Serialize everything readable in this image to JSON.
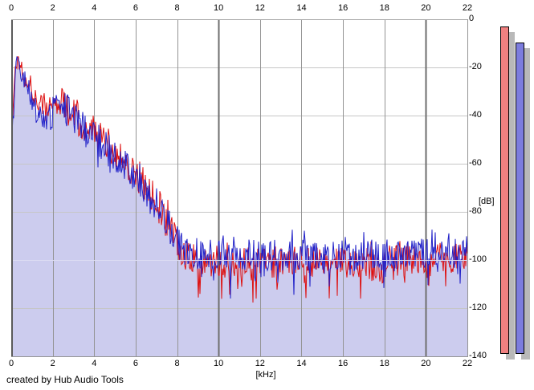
{
  "footer": {
    "credit": "created by Hub Audio Tools"
  },
  "axes": {
    "x_unit_label": "[kHz]",
    "y_unit_label": "[dB]",
    "x_ticks": [
      "0",
      "2",
      "4",
      "6",
      "8",
      "10",
      "12",
      "14",
      "16",
      "18",
      "20",
      "22"
    ],
    "y_ticks": [
      {
        "label": "0",
        "db": 0
      },
      {
        "label": "-20",
        "db": -20
      },
      {
        "label": "-40",
        "db": -40
      },
      {
        "label": "-60",
        "db": -60
      },
      {
        "label": "-80",
        "db": -80
      },
      {
        "label": "-100",
        "db": -100
      },
      {
        "label": "-120",
        "db": -120
      },
      {
        "label": "-140",
        "db": -140
      }
    ]
  },
  "colors": {
    "background": "#ffffff",
    "fill_area": "#ccccee",
    "trace_red": "#dd1010",
    "trace_blue": "#2121c8",
    "grid_horizontal": "#c6c6c6",
    "grid_vertical": "#949494",
    "grid_vertical_major": "#6e6e6e",
    "overlay_line": "#dcdcf2",
    "border_dark": "#5a5a5a",
    "border_light": "#a8a8a8",
    "meter_red": "#f08080",
    "meter_blue": "#7d7dde",
    "meter_shadow": "#b9b9b9"
  },
  "chart_data": {
    "type": "line",
    "title": "",
    "xlabel": "[kHz]",
    "ylabel": "[dB]",
    "xlim": [
      0,
      22
    ],
    "ylim": [
      -140,
      0
    ],
    "x_tick_step_khz": 2,
    "y_tick_step_db": 20,
    "grid": true,
    "legend": "none",
    "description": "Dual-channel audio FFT spectrum; noisy traces peak near -16 dB at 0.3 kHz, decay to a ~-100 dB noise floor above 8 kHz; lavender area fill under blue trace; pale marker line at -100 dB",
    "overlay_line_db": -100,
    "noise_halfband_db": [
      [
        0,
        5
      ],
      [
        0.3,
        5
      ],
      [
        1,
        6
      ],
      [
        2.5,
        7
      ],
      [
        7.5,
        7
      ],
      [
        8.5,
        6.5
      ],
      [
        22,
        6.5
      ]
    ],
    "series": [
      {
        "name": "channel-1-spectrum",
        "color": "#dd1010",
        "seed": 1337,
        "spikes": {
          "down_prob": 0.15,
          "down_extra_db": 11,
          "up_prob": 0.05,
          "up_extra_db": 4,
          "above_khz": 8.4
        },
        "envelope_db": [
          [
            0,
            -58
          ],
          [
            0.08,
            -38
          ],
          [
            0.18,
            -22
          ],
          [
            0.3,
            -16
          ],
          [
            0.45,
            -19
          ],
          [
            0.6,
            -22
          ],
          [
            0.8,
            -25
          ],
          [
            1.0,
            -29
          ],
          [
            1.2,
            -33
          ],
          [
            1.5,
            -37
          ],
          [
            1.8,
            -36
          ],
          [
            2.1,
            -35
          ],
          [
            2.4,
            -34
          ],
          [
            2.7,
            -35
          ],
          [
            3.0,
            -38
          ],
          [
            3.3,
            -42
          ],
          [
            3.6,
            -45
          ],
          [
            4.0,
            -47
          ],
          [
            4.4,
            -50
          ],
          [
            4.8,
            -53
          ],
          [
            5.2,
            -56
          ],
          [
            5.6,
            -60
          ],
          [
            6.0,
            -64
          ],
          [
            6.4,
            -68
          ],
          [
            6.8,
            -73
          ],
          [
            7.2,
            -79
          ],
          [
            7.6,
            -86
          ],
          [
            8.0,
            -93
          ],
          [
            8.4,
            -98
          ],
          [
            8.8,
            -100
          ],
          [
            9.5,
            -101
          ],
          [
            11,
            -101
          ],
          [
            13,
            -101
          ],
          [
            15,
            -101
          ],
          [
            17,
            -101
          ],
          [
            19,
            -100
          ],
          [
            20.5,
            -99
          ],
          [
            22,
            -100
          ]
        ]
      },
      {
        "name": "channel-2-spectrum",
        "color": "#2121c8",
        "fill_color": "#ccccee",
        "fill_to_db": -140,
        "seed": 911,
        "spikes": {
          "down_prob": 0.11,
          "down_extra_db": 9,
          "up_prob": 0.06,
          "up_extra_db": 4,
          "above_khz": 8.4
        },
        "envelope_db": [
          [
            0,
            -62
          ],
          [
            0.08,
            -42
          ],
          [
            0.18,
            -26
          ],
          [
            0.3,
            -18
          ],
          [
            0.45,
            -22
          ],
          [
            0.6,
            -26
          ],
          [
            0.8,
            -29
          ],
          [
            1.0,
            -33
          ],
          [
            1.2,
            -37
          ],
          [
            1.5,
            -41
          ],
          [
            1.8,
            -40
          ],
          [
            2.1,
            -38
          ],
          [
            2.4,
            -37
          ],
          [
            2.7,
            -38
          ],
          [
            3.0,
            -41
          ],
          [
            3.3,
            -44
          ],
          [
            3.6,
            -47
          ],
          [
            4.0,
            -49
          ],
          [
            4.4,
            -52
          ],
          [
            4.8,
            -55
          ],
          [
            5.2,
            -58
          ],
          [
            5.6,
            -61
          ],
          [
            6.0,
            -65
          ],
          [
            6.4,
            -69
          ],
          [
            6.8,
            -74
          ],
          [
            7.2,
            -80
          ],
          [
            7.6,
            -86
          ],
          [
            8.0,
            -92
          ],
          [
            8.4,
            -96
          ],
          [
            8.8,
            -97
          ],
          [
            9.5,
            -98
          ],
          [
            11,
            -98
          ],
          [
            13,
            -98
          ],
          [
            15,
            -98
          ],
          [
            17,
            -98
          ],
          [
            19,
            -97.5
          ],
          [
            20.5,
            -96.5
          ],
          [
            22,
            -97.5
          ]
        ]
      }
    ],
    "meters": [
      {
        "name": "channel-1-level",
        "color": "#f08080",
        "peak_db": -3
      },
      {
        "name": "channel-2-level",
        "color": "#7d7dde",
        "peak_db": -9.7
      }
    ]
  }
}
